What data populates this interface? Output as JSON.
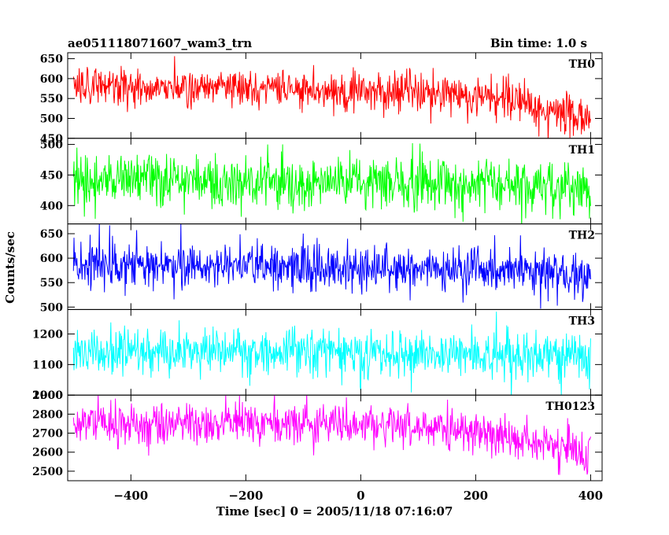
{
  "chart_data": {
    "type": "line",
    "title": "ae051118071607_wam3_trn",
    "bin_time": "Bin time: 1.0 s",
    "xlabel": "Time [sec] 0 = 2005/11/18 07:16:07",
    "ylabel": "Counts/sec",
    "xlim": [
      -510,
      420
    ],
    "x_ticks": [
      -400,
      -200,
      0,
      200,
      400
    ],
    "x_tick_labels": [
      "−400",
      "−200",
      "0",
      "200",
      "400"
    ],
    "x_range": [
      -500,
      400
    ],
    "grid": false,
    "panels": [
      {
        "name": "TH0",
        "color": "#ff0000",
        "ylim": [
          450,
          665
        ],
        "y_ticks": [
          450,
          500,
          550,
          600,
          650
        ],
        "y_tick_labels": [
          "450",
          "500",
          "550",
          "600",
          "650"
        ],
        "trend": [
          [
            -500,
            580
          ],
          [
            -300,
            580
          ],
          [
            -100,
            578
          ],
          [
            100,
            565
          ],
          [
            250,
            545
          ],
          [
            350,
            520
          ],
          [
            400,
            500
          ]
        ],
        "noise_sd": 26
      },
      {
        "name": "TH1",
        "color": "#00ff00",
        "ylim": [
          370,
          510
        ],
        "y_ticks": [
          400,
          450,
          500
        ],
        "y_tick_labels": [
          "400",
          "450",
          "500"
        ],
        "trend": [
          [
            -500,
            440
          ],
          [
            -200,
            440
          ],
          [
            100,
            438
          ],
          [
            300,
            430
          ],
          [
            400,
            425
          ]
        ],
        "noise_sd": 22
      },
      {
        "name": "TH2",
        "color": "#0000ff",
        "ylim": [
          495,
          670
        ],
        "y_ticks": [
          500,
          550,
          600,
          650
        ],
        "y_tick_labels": [
          "500",
          "550",
          "600",
          "650"
        ],
        "trend": [
          [
            -500,
            585
          ],
          [
            -300,
            588
          ],
          [
            -100,
            585
          ],
          [
            100,
            578
          ],
          [
            300,
            575
          ],
          [
            400,
            565
          ]
        ],
        "noise_sd": 24
      },
      {
        "name": "TH3",
        "color": "#00ffff",
        "ylim": [
          1000,
          1280
        ],
        "y_ticks": [
          1000,
          1100,
          1200
        ],
        "y_tick_labels": [
          "1000",
          "1100",
          "1200"
        ],
        "trend": [
          [
            -500,
            1140
          ],
          [
            -200,
            1145
          ],
          [
            100,
            1135
          ],
          [
            300,
            1125
          ],
          [
            400,
            1120
          ]
        ],
        "noise_sd": 40
      },
      {
        "name": "TH0123",
        "color": "#ff00ff",
        "ylim": [
          2450,
          2900
        ],
        "y_ticks": [
          2500,
          2600,
          2700,
          2800,
          2900
        ],
        "y_tick_labels": [
          "2500",
          "2600",
          "2700",
          "2800",
          "2900"
        ],
        "trend": [
          [
            -500,
            2750
          ],
          [
            -200,
            2755
          ],
          [
            0,
            2745
          ],
          [
            150,
            2720
          ],
          [
            300,
            2660
          ],
          [
            400,
            2610
          ]
        ],
        "noise_sd": 55
      }
    ]
  }
}
